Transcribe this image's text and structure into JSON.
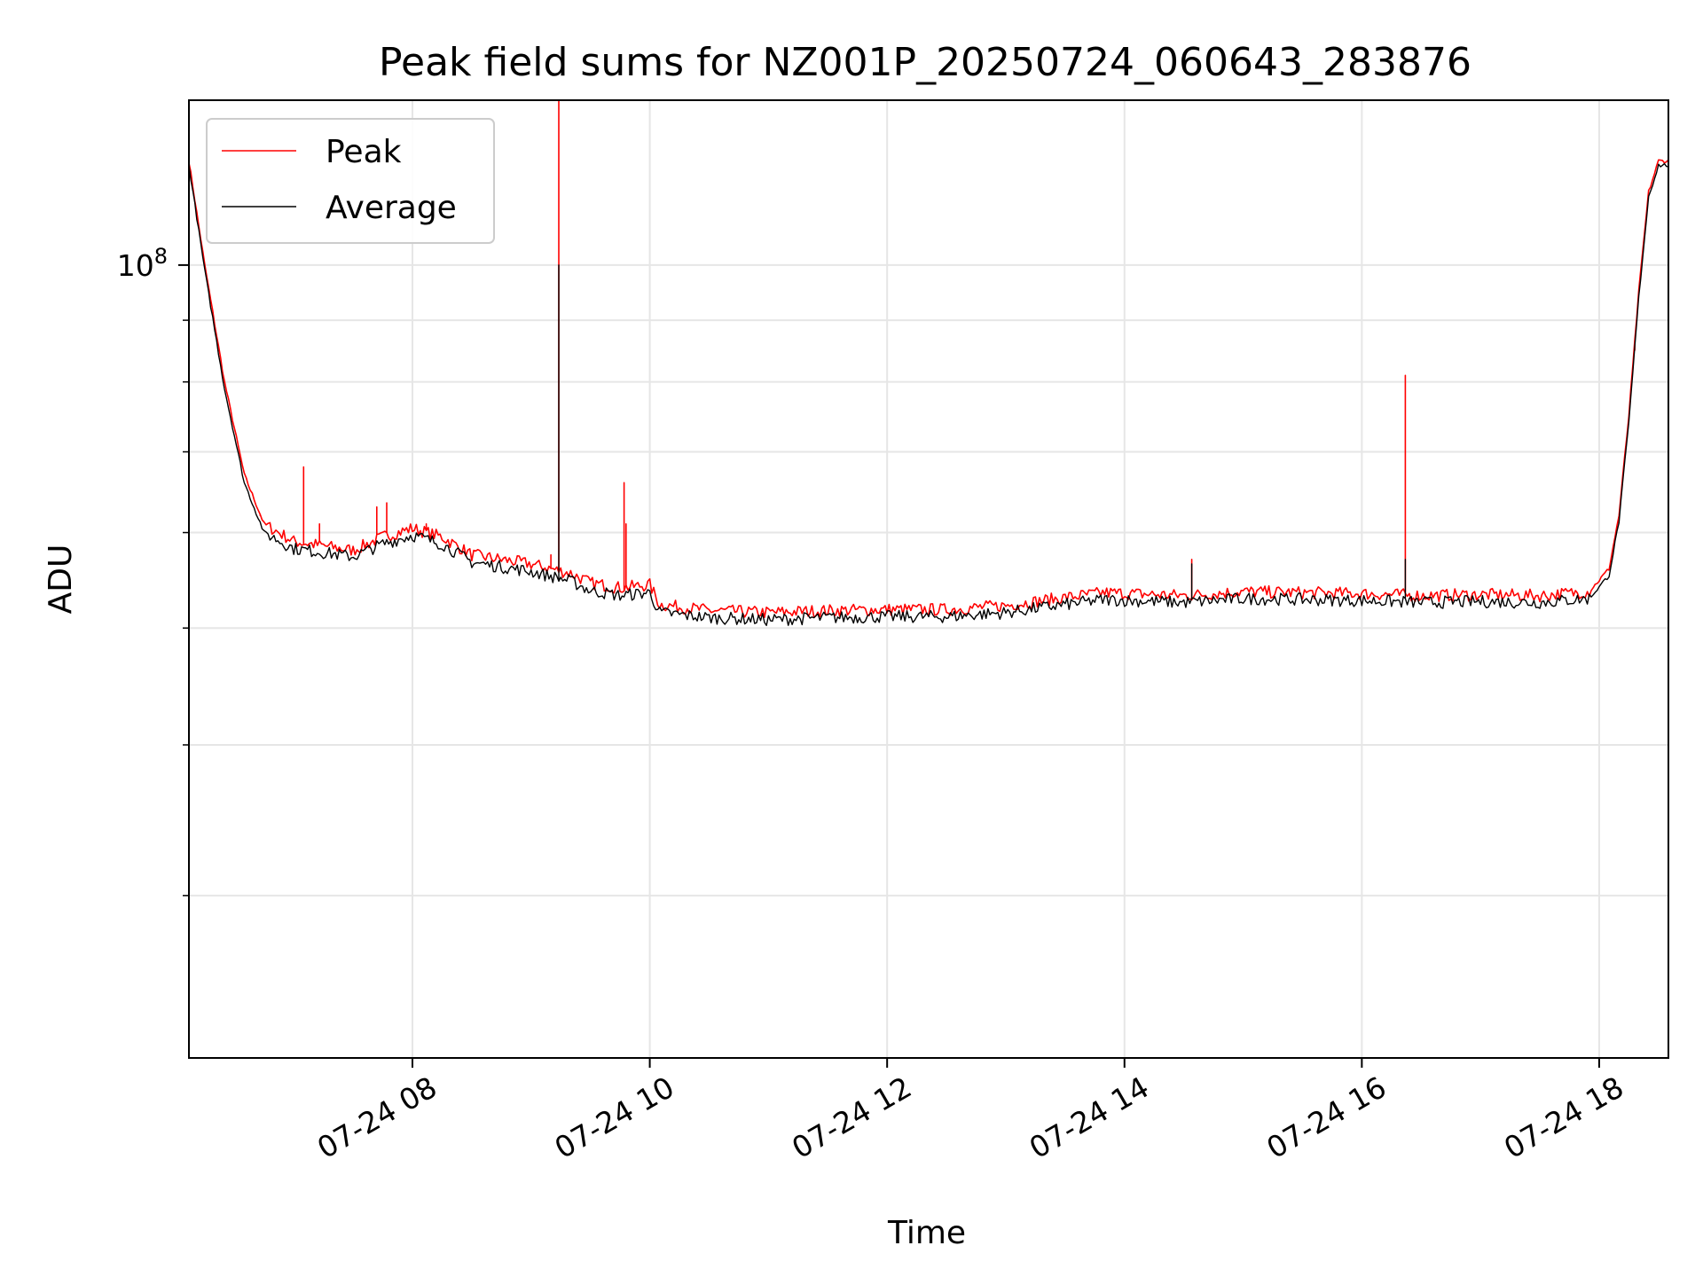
{
  "chart_data": {
    "type": "line",
    "title": "Peak field sums for NZ001P_20250724_060643_283876",
    "xlabel": "Time",
    "ylabel": "ADU",
    "yscale": "log",
    "xlim": [
      "2025-07-24 06:07",
      "2025-07-24 18:35"
    ],
    "ylim": [
      22000000,
      137000000
    ],
    "x_ticks": [
      {
        "at": "2025-07-24 08:00",
        "label": "07-24 08"
      },
      {
        "at": "2025-07-24 10:00",
        "label": "07-24 10"
      },
      {
        "at": "2025-07-24 12:00",
        "label": "07-24 12"
      },
      {
        "at": "2025-07-24 14:00",
        "label": "07-24 14"
      },
      {
        "at": "2025-07-24 16:00",
        "label": "07-24 16"
      },
      {
        "at": "2025-07-24 18:00",
        "label": "07-24 18"
      }
    ],
    "y_major_ticks": [
      {
        "value": 100000000,
        "base": "10",
        "exp": "8"
      }
    ],
    "y_minor_ticks": [
      30000000,
      40000000,
      50000000,
      60000000,
      70000000,
      80000000,
      90000000
    ],
    "grid": true,
    "legend": "top-left",
    "series": [
      {
        "name": "Peak",
        "color": "#ff0000",
        "points": [
          [
            "2025-07-24 06:07",
            122000000
          ],
          [
            "2025-07-24 06:15",
            100000000
          ],
          [
            "2025-07-24 06:25",
            80000000
          ],
          [
            "2025-07-24 06:35",
            67000000
          ],
          [
            "2025-07-24 06:45",
            61000000
          ],
          [
            "2025-07-24 07:00",
            59000000
          ],
          [
            "2025-07-24 07:30",
            58000000
          ],
          [
            "2025-07-24 07:45",
            59500000
          ],
          [
            "2025-07-24 08:00",
            60500000
          ],
          [
            "2025-07-24 08:15",
            59500000
          ],
          [
            "2025-07-24 08:30",
            57500000
          ],
          [
            "2025-07-24 09:00",
            56500000
          ],
          [
            "2025-07-24 09:20",
            55500000
          ],
          [
            "2025-07-24 09:30",
            54500000
          ],
          [
            "2025-07-24 09:45",
            54000000
          ],
          [
            "2025-07-24 10:00",
            54300000
          ],
          [
            "2025-07-24 10:05",
            52300000
          ],
          [
            "2025-07-24 10:30",
            51700000
          ],
          [
            "2025-07-24 11:00",
            51500000
          ],
          [
            "2025-07-24 11:30",
            51700000
          ],
          [
            "2025-07-24 12:00",
            51800000
          ],
          [
            "2025-07-24 12:30",
            51800000
          ],
          [
            "2025-07-24 13:00",
            52200000
          ],
          [
            "2025-07-24 13:30",
            53000000
          ],
          [
            "2025-07-24 13:50",
            53500000
          ],
          [
            "2025-07-24 14:30",
            53200000
          ],
          [
            "2025-07-24 15:00",
            53600000
          ],
          [
            "2025-07-24 15:30",
            53500000
          ],
          [
            "2025-07-24 16:00",
            53400000
          ],
          [
            "2025-07-24 16:30",
            53200000
          ],
          [
            "2025-07-24 17:00",
            53300000
          ],
          [
            "2025-07-24 17:30",
            53200000
          ],
          [
            "2025-07-24 17:55",
            53600000
          ],
          [
            "2025-07-24 18:05",
            56000000
          ],
          [
            "2025-07-24 18:10",
            62000000
          ],
          [
            "2025-07-24 18:15",
            75000000
          ],
          [
            "2025-07-24 18:20",
            95000000
          ],
          [
            "2025-07-24 18:25",
            115000000
          ],
          [
            "2025-07-24 18:30",
            122000000
          ],
          [
            "2025-07-24 18:35",
            122000000
          ]
        ],
        "spikes": [
          [
            "2025-07-24 06:43",
            62000000
          ],
          [
            "2025-07-24 07:05",
            68000000
          ],
          [
            "2025-07-24 07:13",
            61000000
          ],
          [
            "2025-07-24 07:42",
            63000000
          ],
          [
            "2025-07-24 07:47",
            63500000
          ],
          [
            "2025-07-24 08:07",
            61000000
          ],
          [
            "2025-07-24 09:10",
            57500000
          ],
          [
            "2025-07-24 09:14",
            137000000
          ],
          [
            "2025-07-24 09:47",
            66000000
          ],
          [
            "2025-07-24 09:48",
            61000000
          ],
          [
            "2025-07-24 14:34",
            57000000
          ],
          [
            "2025-07-24 16:22",
            81000000
          ],
          [
            "2025-07-24 18:18",
            85000000
          ]
        ]
      },
      {
        "name": "Average",
        "color": "#000000",
        "points": [
          [
            "2025-07-24 06:07",
            121000000
          ],
          [
            "2025-07-24 06:15",
            99000000
          ],
          [
            "2025-07-24 06:25",
            79000000
          ],
          [
            "2025-07-24 06:35",
            66000000
          ],
          [
            "2025-07-24 06:45",
            60000000
          ],
          [
            "2025-07-24 07:00",
            58200000
          ],
          [
            "2025-07-24 07:30",
            57300000
          ],
          [
            "2025-07-24 07:45",
            58700000
          ],
          [
            "2025-07-24 08:00",
            59700000
          ],
          [
            "2025-07-24 08:15",
            58700000
          ],
          [
            "2025-07-24 08:30",
            56700000
          ],
          [
            "2025-07-24 09:00",
            55700000
          ],
          [
            "2025-07-24 09:20",
            54700000
          ],
          [
            "2025-07-24 09:30",
            53700000
          ],
          [
            "2025-07-24 09:45",
            53200000
          ],
          [
            "2025-07-24 10:00",
            53500000
          ],
          [
            "2025-07-24 10:05",
            51500000
          ],
          [
            "2025-07-24 10:30",
            51000000
          ],
          [
            "2025-07-24 11:00",
            50800000
          ],
          [
            "2025-07-24 11:30",
            51000000
          ],
          [
            "2025-07-24 12:00",
            51100000
          ],
          [
            "2025-07-24 12:30",
            51100000
          ],
          [
            "2025-07-24 13:00",
            51500000
          ],
          [
            "2025-07-24 13:30",
            52300000
          ],
          [
            "2025-07-24 13:50",
            52800000
          ],
          [
            "2025-07-24 14:30",
            52500000
          ],
          [
            "2025-07-24 15:00",
            52900000
          ],
          [
            "2025-07-24 15:30",
            52800000
          ],
          [
            "2025-07-24 16:00",
            52700000
          ],
          [
            "2025-07-24 16:30",
            52500000
          ],
          [
            "2025-07-24 17:00",
            52600000
          ],
          [
            "2025-07-24 17:30",
            52500000
          ],
          [
            "2025-07-24 17:55",
            52900000
          ],
          [
            "2025-07-24 18:05",
            55300000
          ],
          [
            "2025-07-24 18:10",
            61300000
          ],
          [
            "2025-07-24 18:15",
            74000000
          ],
          [
            "2025-07-24 18:20",
            94000000
          ],
          [
            "2025-07-24 18:25",
            114000000
          ],
          [
            "2025-07-24 18:30",
            121000000
          ],
          [
            "2025-07-24 18:35",
            121000000
          ]
        ],
        "spikes": [
          [
            "2025-07-24 09:14",
            100000000
          ],
          [
            "2025-07-24 14:34",
            56500000
          ],
          [
            "2025-07-24 16:22",
            57000000
          ]
        ]
      }
    ]
  }
}
